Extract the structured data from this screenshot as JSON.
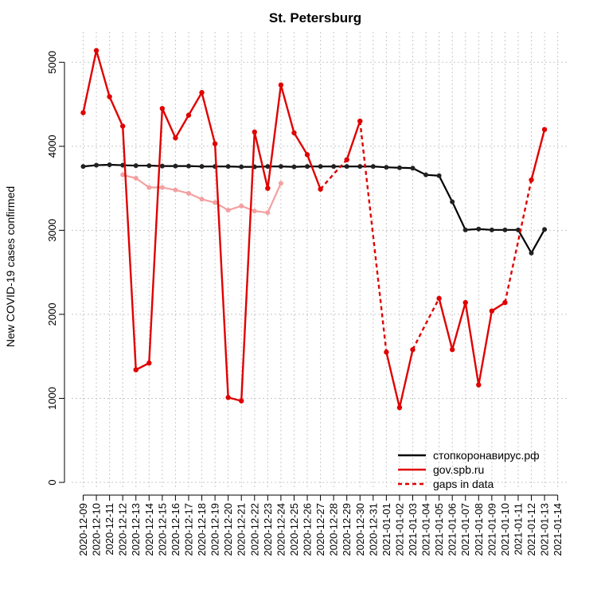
{
  "chart_data": {
    "type": "line",
    "title": "St. Petersburg",
    "xlabel": "",
    "ylabel": "New COVID-19 cases confirmed",
    "ylim": [
      0,
      5300
    ],
    "yticks": [
      0,
      1000,
      2000,
      3000,
      4000,
      5000
    ],
    "x": [
      "2020-12-09",
      "2020-12-10",
      "2020-12-11",
      "2020-12-12",
      "2020-12-13",
      "2020-12-14",
      "2020-12-15",
      "2020-12-16",
      "2020-12-17",
      "2020-12-18",
      "2020-12-19",
      "2020-12-20",
      "2020-12-21",
      "2020-12-22",
      "2020-12-23",
      "2020-12-24",
      "2020-12-25",
      "2020-12-26",
      "2020-12-27",
      "2020-12-28",
      "2020-12-29",
      "2020-12-30",
      "2020-12-31",
      "2021-01-01",
      "2021-01-02",
      "2021-01-03",
      "2021-01-04",
      "2021-01-05",
      "2021-01-06",
      "2021-01-07",
      "2021-01-08",
      "2021-01-09",
      "2021-01-10",
      "2021-01-11",
      "2021-01-12",
      "2021-01-13",
      "2021-01-14"
    ],
    "grid": true,
    "legend_position": "bottom-right",
    "series": [
      {
        "name": "стопкоронавирус.рф",
        "color": "#000000",
        "style": "solid",
        "values": [
          3760,
          3775,
          3780,
          3775,
          3770,
          3770,
          3765,
          3765,
          3765,
          3760,
          3760,
          3760,
          3755,
          3755,
          3760,
          3760,
          3755,
          3760,
          3760,
          3760,
          3760,
          3760,
          3760,
          3750,
          3745,
          3740,
          3660,
          3650,
          3340,
          3005,
          3015,
          3005,
          3005,
          3005,
          2730,
          3010,
          null
        ]
      },
      {
        "name": "gov.spb.ru",
        "color": "#e00000",
        "style": "solid",
        "values": [
          4400,
          5140,
          4590,
          4240,
          1340,
          1420,
          4450,
          4100,
          4370,
          4640,
          4030,
          1010,
          970,
          4170,
          3500,
          4730,
          4160,
          3900,
          3490,
          null,
          3840,
          4300,
          null,
          1550,
          890,
          1580,
          null,
          2190,
          1580,
          2140,
          1160,
          2040,
          2140,
          null,
          3600,
          4200,
          null
        ]
      },
      {
        "name": "gaps in data",
        "color": "#e00000",
        "style": "dashed",
        "segments": [
          {
            "x": [
              "2020-12-27",
              "2020-12-28",
              "2020-12-29"
            ],
            "values": [
              3490,
              3670,
              3840
            ]
          },
          {
            "x": [
              "2020-12-30",
              "2020-12-31",
              "2021-01-01"
            ],
            "values": [
              4300,
              2930,
              1550
            ]
          },
          {
            "x": [
              "2021-01-03",
              "2021-01-04",
              "2021-01-05"
            ],
            "values": [
              1580,
              1890,
              2190
            ]
          },
          {
            "x": [
              "2021-01-10",
              "2021-01-11",
              "2021-01-12"
            ],
            "values": [
              2140,
              2870,
              3600
            ]
          }
        ]
      },
      {
        "name": "",
        "color": "#f4a0a0",
        "style": "solid",
        "values": [
          null,
          null,
          null,
          3660,
          3620,
          3510,
          3510,
          3480,
          3440,
          3370,
          3330,
          3240,
          3290,
          3230,
          3210,
          3560,
          null,
          null,
          null,
          null,
          null,
          null,
          null,
          null,
          null,
          null,
          null,
          null,
          null,
          null,
          null,
          null,
          null,
          null,
          null,
          null,
          null
        ]
      }
    ]
  }
}
